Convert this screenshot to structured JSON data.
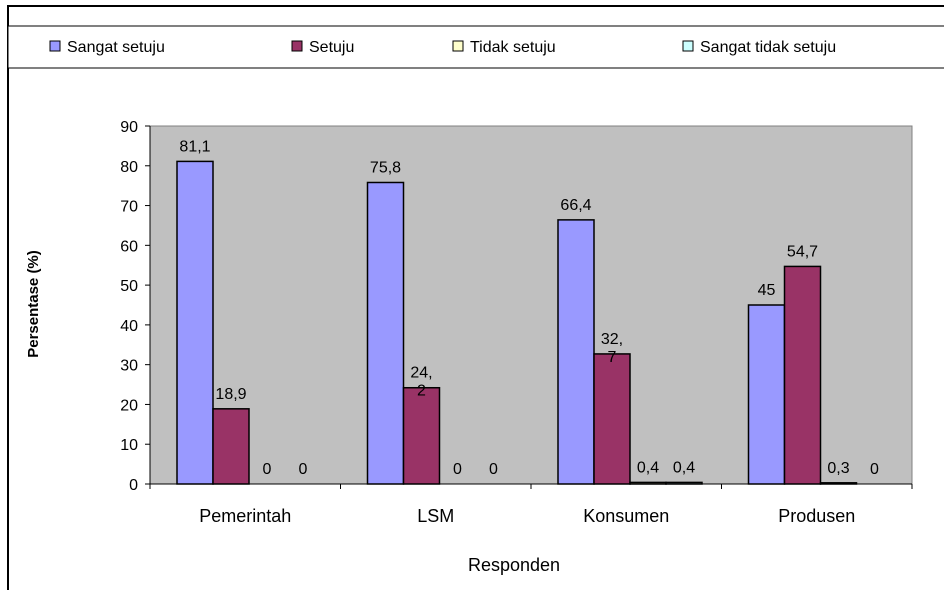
{
  "chart_data": {
    "type": "bar",
    "title": "",
    "xlabel": "Responden",
    "ylabel": "Persentase (%)",
    "ylim": [
      0,
      90
    ],
    "yticks": [
      0,
      10,
      20,
      30,
      40,
      50,
      60,
      70,
      80,
      90
    ],
    "grid": false,
    "legend_position": "top",
    "categories": [
      "Pemerintah",
      "LSM",
      "Konsumen",
      "Produsen"
    ],
    "series": [
      {
        "name": "Sangat setuju",
        "color": "#9999ff",
        "values": [
          81.1,
          75.8,
          66.4,
          45
        ],
        "labels": [
          "81,1",
          "75,8",
          "66,4",
          "45"
        ]
      },
      {
        "name": "Setuju",
        "color": "#993366",
        "values": [
          18.9,
          24.2,
          32.7,
          54.7
        ],
        "labels": [
          "18,9",
          "24,\n2",
          "32,\n7",
          "54,7"
        ]
      },
      {
        "name": "Tidak setuju",
        "color": "#ffffcc",
        "values": [
          0,
          0,
          0.4,
          0.3
        ],
        "labels": [
          "0",
          "0",
          "0,4",
          "0,3"
        ]
      },
      {
        "name": "Sangat tidak setuju",
        "color": "#ccffff",
        "values": [
          0,
          0,
          0.4,
          0
        ],
        "labels": [
          "0",
          "0",
          "0,4",
          "0"
        ]
      }
    ],
    "plot_background": "#c0c0c0"
  }
}
